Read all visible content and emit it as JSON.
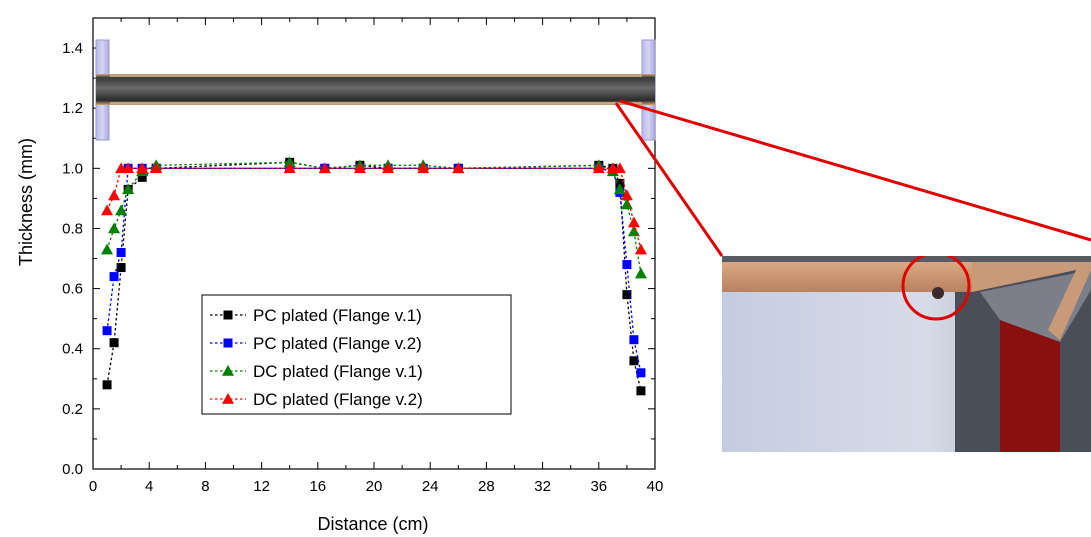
{
  "chart_data": {
    "type": "scatter",
    "xlabel": "Distance (cm)",
    "ylabel": "Thickness (mm)",
    "xlim": [
      0,
      40
    ],
    "ylim": [
      0,
      1.5
    ],
    "xticks": [
      "0",
      "4",
      "8",
      "12",
      "16",
      "20",
      "24",
      "28",
      "32",
      "36",
      "40"
    ],
    "yticks": [
      "0.0",
      "0.2",
      "0.4",
      "0.6",
      "0.8",
      "1.0",
      "1.2",
      "1.4"
    ],
    "grid": false,
    "legend_position": "center-left",
    "series": [
      {
        "name": "PC plated (Flange v.1)",
        "color": "#000000",
        "marker": "square",
        "x": [
          1.0,
          1.5,
          2.0,
          2.5,
          3.5,
          4.5,
          14.0,
          16.5,
          19.0,
          21.0,
          23.5,
          26.0,
          36.0,
          37.0,
          37.5,
          38.0,
          38.5,
          39.0
        ],
        "y": [
          0.28,
          0.42,
          0.67,
          0.93,
          0.97,
          1.0,
          1.02,
          1.0,
          1.01,
          1.0,
          1.0,
          1.0,
          1.01,
          1.0,
          0.95,
          0.58,
          0.36,
          0.26
        ]
      },
      {
        "name": "PC plated (Flange v.2)",
        "color": "#0000ff",
        "marker": "square",
        "x": [
          1.0,
          1.5,
          2.0,
          2.5,
          3.5,
          4.5,
          14.0,
          16.5,
          19.0,
          21.0,
          23.5,
          26.0,
          36.0,
          37.0,
          37.5,
          38.0,
          38.5,
          39.0
        ],
        "y": [
          0.46,
          0.64,
          0.72,
          1.0,
          1.0,
          1.0,
          1.0,
          1.0,
          1.0,
          1.0,
          1.0,
          1.0,
          1.0,
          0.99,
          0.92,
          0.68,
          0.43,
          0.32
        ]
      },
      {
        "name": "DC plated (Flange v.1)",
        "color": "#008000",
        "marker": "triangle",
        "x": [
          1.0,
          1.5,
          2.0,
          2.5,
          3.5,
          4.5,
          14.0,
          16.5,
          19.0,
          21.0,
          23.5,
          26.0,
          36.0,
          37.0,
          37.5,
          38.0,
          38.5,
          39.0
        ],
        "y": [
          0.73,
          0.8,
          0.86,
          0.93,
          0.99,
          1.01,
          1.02,
          1.0,
          1.01,
          1.01,
          1.01,
          1.0,
          1.01,
          0.99,
          0.93,
          0.88,
          0.79,
          0.65
        ]
      },
      {
        "name": "DC plated (Flange v.2)",
        "color": "#ff0000",
        "marker": "triangle",
        "x": [
          1.0,
          1.5,
          2.0,
          2.5,
          3.5,
          4.5,
          14.0,
          16.5,
          19.0,
          21.0,
          23.5,
          26.0,
          36.0,
          37.0,
          37.5,
          38.0,
          38.5,
          39.0
        ],
        "y": [
          0.86,
          0.91,
          1.0,
          1.0,
          1.0,
          1.0,
          1.0,
          1.0,
          1.0,
          1.0,
          1.0,
          1.0,
          1.0,
          1.0,
          1.0,
          0.91,
          0.82,
          0.73
        ]
      }
    ]
  }
}
